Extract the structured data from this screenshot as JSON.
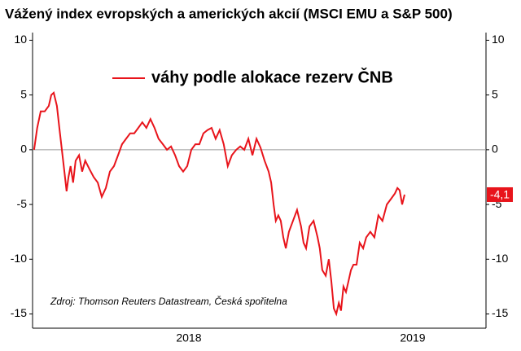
{
  "chart_data": {
    "type": "line",
    "title": "Vážený index evropských a amerických akcií (MSCI EMU a S&P 500)",
    "source": "Zdroj: Thomson Reuters Datastream, Česká spořitelna",
    "end_label": "-4,1",
    "x": [
      2018.0,
      2018.01,
      2018.021,
      2018.034,
      2018.047,
      2018.055,
      2018.063,
      2018.073,
      2018.081,
      2018.089,
      2018.097,
      2018.104,
      2018.11,
      2018.117,
      2018.125,
      2018.133,
      2018.144,
      2018.154,
      2018.164,
      2018.178,
      2018.191,
      2018.204,
      2018.217,
      2018.23,
      2018.243,
      2018.256,
      2018.269,
      2018.282,
      2018.295,
      2018.308,
      2018.321,
      2018.334,
      2018.347,
      2018.36,
      2018.373,
      2018.386,
      2018.399,
      2018.413,
      2018.426,
      2018.439,
      2018.452,
      2018.465,
      2018.478,
      2018.491,
      2018.504,
      2018.517,
      2018.53,
      2018.543,
      2018.556,
      2018.569,
      2018.582,
      2018.595,
      2018.608,
      2018.621,
      2018.634,
      2018.648,
      2018.661,
      2018.674,
      2018.687,
      2018.7,
      2018.713,
      2018.726,
      2018.739,
      2018.752,
      2018.76,
      2018.768,
      2018.775,
      2018.783,
      2018.791,
      2018.799,
      2018.807,
      2018.817,
      2018.83,
      2018.843,
      2018.856,
      2018.864,
      2018.872,
      2018.883,
      2018.896,
      2018.909,
      2018.916,
      2018.924,
      2018.935,
      2018.945,
      2018.953,
      2018.961,
      2018.969,
      2018.977,
      2018.984,
      2018.992,
      2019.0,
      2019.008,
      2019.016,
      2019.024,
      2019.034,
      2019.044,
      2019.055,
      2019.065,
      2019.078,
      2019.091,
      2019.104,
      2019.117,
      2019.131,
      2019.144,
      2019.157,
      2019.165,
      2019.172,
      2019.18,
      2019.188
    ],
    "series": [
      {
        "name": "váhy podle alokace rezerv ČNB",
        "color": "#e8141b",
        "values": [
          0,
          2,
          3.5,
          3.5,
          4,
          5,
          5.2,
          4,
          2,
          0,
          -2,
          -3.8,
          -2.5,
          -1.5,
          -3,
          -1,
          -0.5,
          -2,
          -1,
          -1.8,
          -2.5,
          -3,
          -4.3,
          -3.5,
          -2,
          -1.5,
          -0.5,
          0.5,
          1,
          1.5,
          1.5,
          2,
          2.5,
          2,
          2.8,
          2,
          1,
          0.5,
          0,
          0.3,
          -0.5,
          -1.5,
          -2,
          -1.5,
          0,
          0.5,
          0.5,
          1.5,
          1.8,
          2,
          1,
          1.8,
          0.5,
          -1.5,
          -0.5,
          0,
          0.3,
          0,
          1,
          -0.5,
          1,
          0.2,
          -1,
          -2,
          -3,
          -5,
          -6.5,
          -6,
          -6.5,
          -8,
          -9,
          -7.5,
          -6.5,
          -5.5,
          -7,
          -8.5,
          -9,
          -7,
          -6.5,
          -8,
          -9,
          -11,
          -11.5,
          -10,
          -12,
          -14.5,
          -15,
          -14,
          -14.7,
          -12.5,
          -13,
          -12,
          -11,
          -10.5,
          -10.5,
          -8.5,
          -9,
          -8,
          -7.5,
          -8,
          -6,
          -6.5,
          -5,
          -4.5,
          -4,
          -3.5,
          -3.7,
          -5,
          -4.1
        ]
      }
    ],
    "xlim": [
      2017.995,
      2019.449
    ],
    "xticks": [
      {
        "value": 2018.496,
        "label": "2018"
      },
      {
        "value": 2019.214,
        "label": "2019"
      }
    ],
    "ylim": [
      -16.3,
      10.7
    ],
    "yticks": [
      -15,
      -10,
      -5,
      0,
      5,
      10
    ],
    "y2lim": [
      -16.3,
      10.7
    ],
    "y2ticks": [
      -15,
      -10,
      -5,
      0,
      5,
      10
    ],
    "grid": false
  }
}
